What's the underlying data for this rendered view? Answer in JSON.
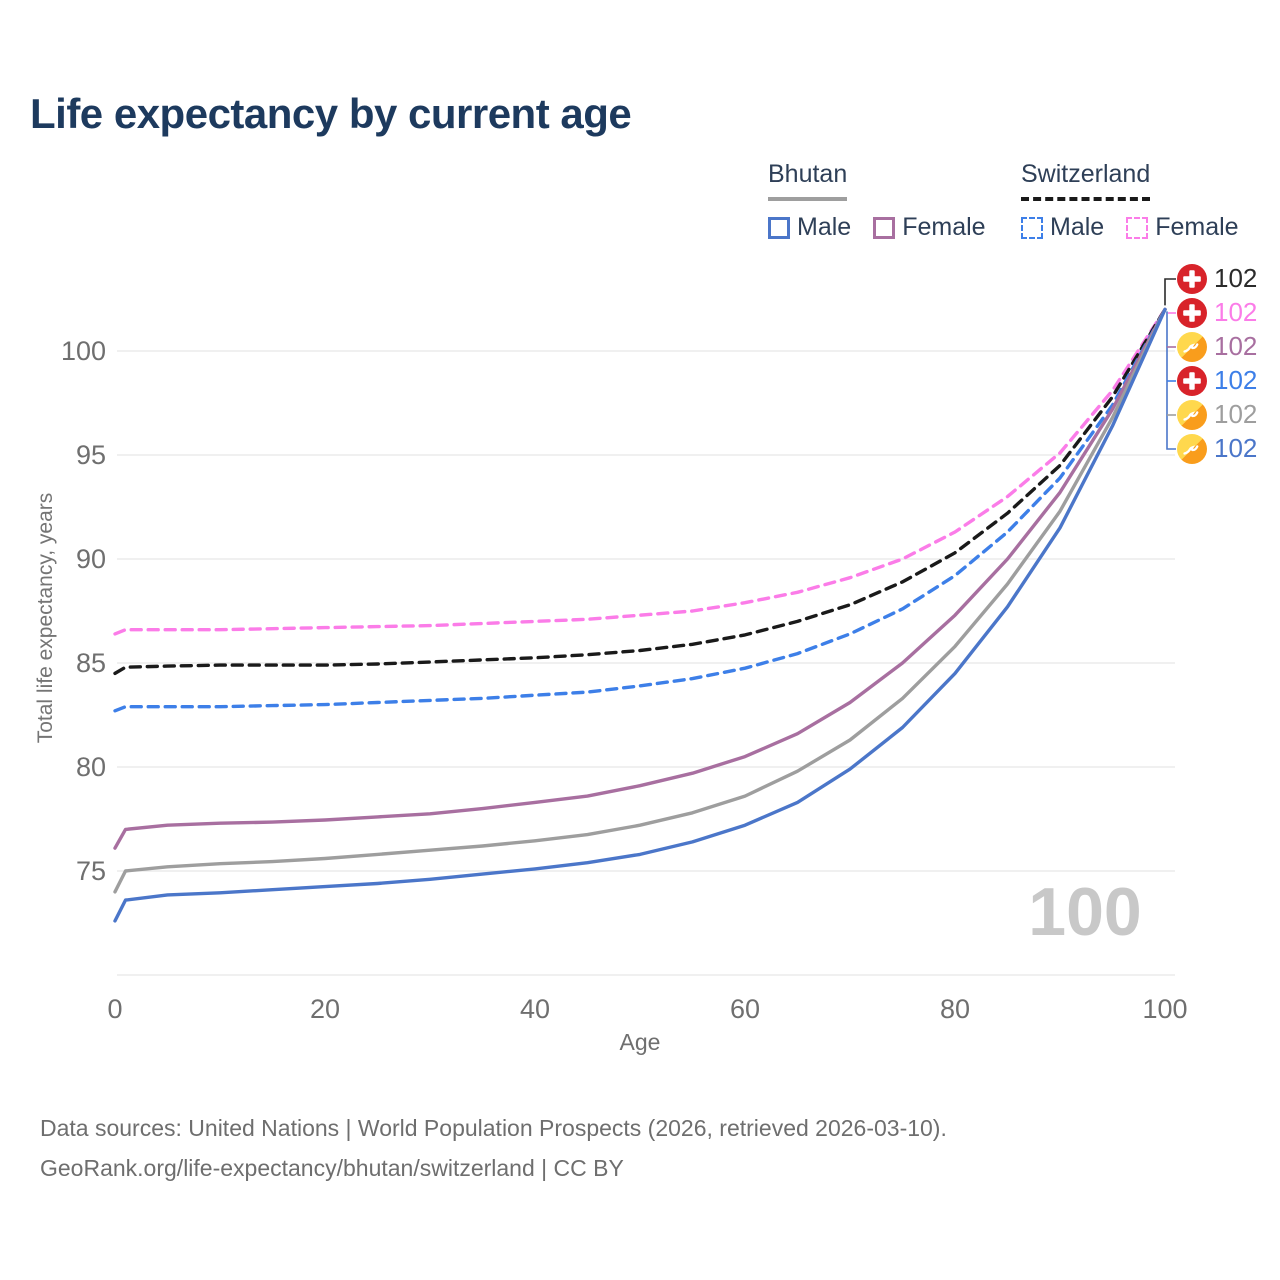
{
  "title": "Life expectancy by current age",
  "legend": {
    "groups": [
      {
        "country": "Bhutan",
        "line_style": "solid",
        "line_color": "#9e9e9e",
        "items": [
          {
            "label": "Male",
            "color": "#4b76c9",
            "dashed": false
          },
          {
            "label": "Female",
            "color": "#a86fa0",
            "dashed": false
          }
        ]
      },
      {
        "country": "Switzerland",
        "line_style": "dashed",
        "line_color": "#1a1a1a",
        "items": [
          {
            "label": "Male",
            "color": "#3d7fe8",
            "dashed": true
          },
          {
            "label": "Female",
            "color": "#fb7ce8",
            "dashed": true
          }
        ]
      }
    ]
  },
  "axis": {
    "x_label": "Age",
    "y_label": "Total life expectancy, years"
  },
  "watermark": "100",
  "sources": {
    "line1": "Data sources: United Nations | World Population Prospects (2026, retrieved 2026-03-10).",
    "line2": "GeoRank.org/life-expectancy/bhutan/switzerland | CC BY"
  },
  "chart_data": {
    "type": "line",
    "title": "Life expectancy by current age",
    "xlabel": "Age",
    "ylabel": "Total life expectancy, years",
    "xlim": [
      0,
      100
    ],
    "ylim": [
      70,
      102
    ],
    "x_ticks": [
      0,
      20,
      40,
      60,
      80,
      100
    ],
    "y_ticks": [
      75,
      80,
      85,
      90,
      95,
      100
    ],
    "unlabeled_gridlines": [
      70
    ],
    "grid": true,
    "legend_position": "top-right",
    "ages": [
      0,
      1,
      5,
      10,
      15,
      20,
      25,
      30,
      35,
      40,
      45,
      50,
      55,
      60,
      65,
      70,
      75,
      80,
      85,
      90,
      95,
      100
    ],
    "series": [
      {
        "name": "Switzerland Female",
        "country": "Switzerland",
        "sex": "Female",
        "color": "#fb7ce8",
        "dashed": true,
        "values": [
          86.4,
          86.6,
          86.6,
          86.6,
          86.65,
          86.7,
          86.75,
          86.8,
          86.9,
          87.0,
          87.1,
          87.3,
          87.5,
          87.9,
          88.4,
          89.1,
          90.0,
          91.3,
          93.0,
          95.1,
          98.1,
          102
        ]
      },
      {
        "name": "Switzerland Total",
        "country": "Switzerland",
        "sex": "Both",
        "color": "#1a1a1a",
        "dashed": true,
        "values": [
          84.5,
          84.8,
          84.85,
          84.9,
          84.9,
          84.9,
          84.95,
          85.05,
          85.15,
          85.25,
          85.4,
          85.6,
          85.9,
          86.35,
          87.0,
          87.8,
          88.9,
          90.3,
          92.2,
          94.5,
          97.8,
          102
        ]
      },
      {
        "name": "Switzerland Male",
        "country": "Switzerland",
        "sex": "Male",
        "color": "#3d7fe8",
        "dashed": true,
        "values": [
          82.7,
          82.9,
          82.9,
          82.9,
          82.95,
          83.0,
          83.1,
          83.2,
          83.3,
          83.45,
          83.6,
          83.9,
          84.25,
          84.75,
          85.45,
          86.4,
          87.6,
          89.2,
          91.3,
          93.9,
          97.4,
          102
        ]
      },
      {
        "name": "Bhutan Female",
        "country": "Bhutan",
        "sex": "Female",
        "color": "#a86fa0",
        "dashed": false,
        "values": [
          76.1,
          77.0,
          77.2,
          77.3,
          77.35,
          77.45,
          77.6,
          77.75,
          78.0,
          78.3,
          78.6,
          79.1,
          79.7,
          80.5,
          81.6,
          83.1,
          85.0,
          87.3,
          90.0,
          93.2,
          97.2,
          102
        ]
      },
      {
        "name": "Bhutan Total",
        "country": "Bhutan",
        "sex": "Both",
        "color": "#9e9e9e",
        "dashed": false,
        "values": [
          74.0,
          75.0,
          75.2,
          75.35,
          75.45,
          75.6,
          75.8,
          76.0,
          76.2,
          76.45,
          76.75,
          77.2,
          77.8,
          78.6,
          79.8,
          81.3,
          83.3,
          85.8,
          88.8,
          92.3,
          96.8,
          102
        ]
      },
      {
        "name": "Bhutan Male",
        "country": "Bhutan",
        "sex": "Male",
        "color": "#4b76c9",
        "dashed": false,
        "values": [
          72.6,
          73.6,
          73.85,
          73.95,
          74.1,
          74.25,
          74.4,
          74.6,
          74.85,
          75.1,
          75.4,
          75.8,
          76.4,
          77.2,
          78.3,
          79.9,
          81.9,
          84.5,
          87.7,
          91.5,
          96.4,
          102
        ]
      }
    ],
    "end_labels": [
      {
        "value": "102",
        "color": "#2b2b2b",
        "flag": "switzerland",
        "series": "Switzerland Total"
      },
      {
        "value": "102",
        "color": "#fb7ce8",
        "flag": "switzerland",
        "series": "Switzerland Female"
      },
      {
        "value": "102",
        "color": "#a86fa0",
        "flag": "bhutan",
        "series": "Bhutan Female"
      },
      {
        "value": "102",
        "color": "#3d7fe8",
        "flag": "switzerland",
        "series": "Switzerland Male"
      },
      {
        "value": "102",
        "color": "#9e9e9e",
        "flag": "bhutan",
        "series": "Bhutan Total"
      },
      {
        "value": "102",
        "color": "#4b76c9",
        "flag": "bhutan",
        "series": "Bhutan Male"
      }
    ],
    "age_indicator": "100"
  }
}
